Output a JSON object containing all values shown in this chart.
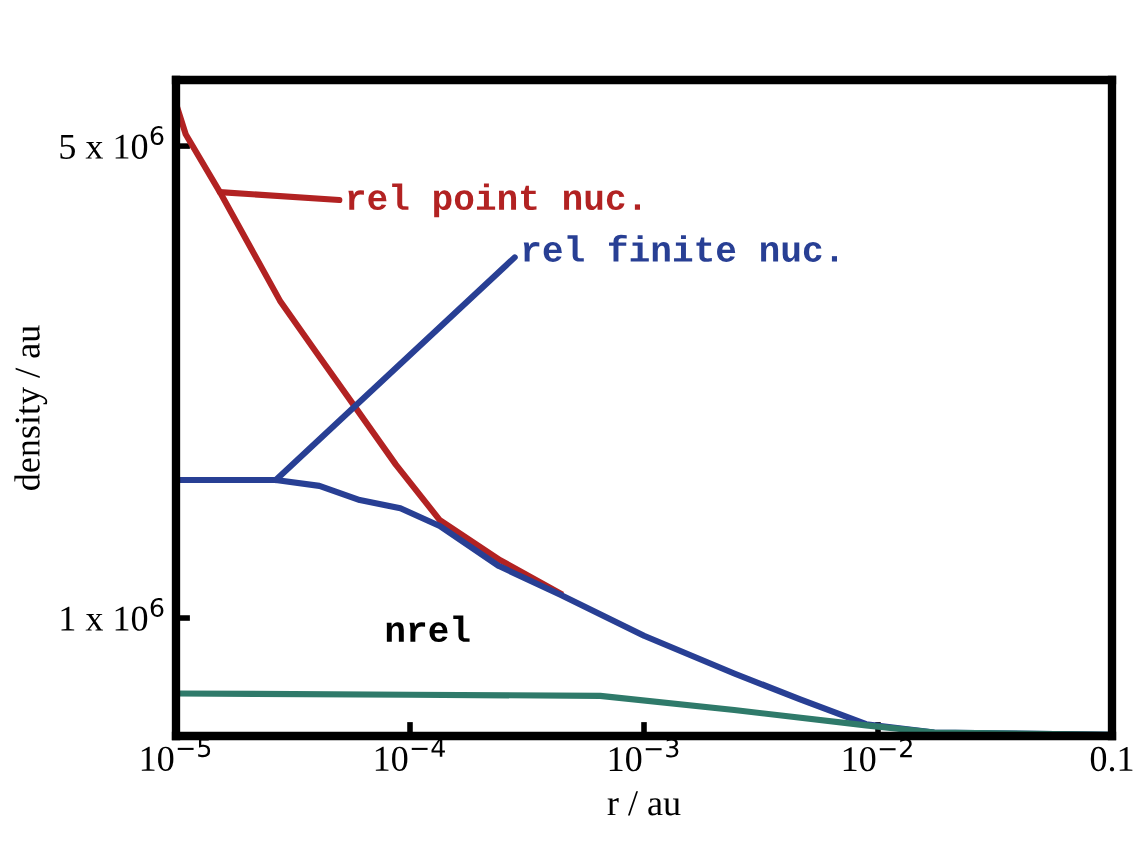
{
  "chart_data": {
    "type": "line",
    "xlabel": "r / au",
    "ylabel": "density / au",
    "log": "x",
    "xlim": [
      1e-05,
      0.1
    ],
    "xticks": [
      {
        "value": 1e-05,
        "label": "10$^{−5}$"
      },
      {
        "value": 0.0001,
        "label": "10$^{−4}$"
      },
      {
        "value": 0.001,
        "label": "10$^{−3}$"
      },
      {
        "value": 0.01,
        "label": "10$^{−2}$"
      },
      0.1
    ],
    "ylim": [
      0,
      5560000
    ],
    "yticks": [
      {
        "value": 1000000,
        "label": "1 x 10$^{6}$"
      },
      {
        "value": 5000000,
        "label": "5 x 10$^{6}$"
      }
    ],
    "grid": false,
    "series": [
      {
        "name": "rel point nuc.",
        "color": "#b22222",
        "x": [
          1e-05,
          1.1e-05,
          1.54e-05,
          2.78e-05,
          3.98e-05,
          5.77e-05,
          8.7e-05,
          0.000134,
          0.000243,
          0.000437
        ],
        "values": [
          5360000,
          5100000,
          4610000,
          3690000,
          3250000,
          2800000,
          2300000,
          1830000,
          1490000,
          1210000
        ]
      },
      {
        "name": "rel finite nuc.",
        "color": "#283f94",
        "x": [
          1e-05,
          2.67e-05,
          4.1e-05,
          6.1e-05,
          9.1e-05,
          0.000134,
          0.00024,
          0.000437,
          0.001,
          0.00243,
          0.00465,
          0.0089,
          0.0174,
          0.1
        ],
        "values": [
          2170000,
          2170000,
          2120000,
          2000000,
          1930000,
          1780000,
          1440000,
          1200000,
          850000,
          530000,
          310000,
          100000,
          30000,
          10000
        ]
      },
      {
        "name": "nrel",
        "color": "#2f7a6a",
        "x": [
          1e-05,
          0.0001,
          0.00065,
          0.00243,
          0.0089,
          0.0174,
          0.1
        ],
        "values": [
          360000,
          350000,
          340000,
          220000,
          90000,
          30000,
          10000
        ]
      }
    ]
  }
}
